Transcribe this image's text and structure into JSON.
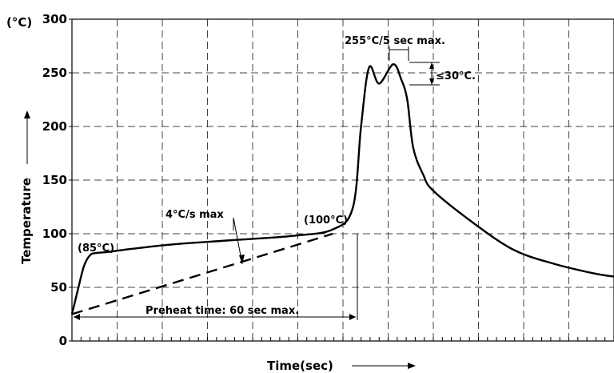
{
  "chart_data": {
    "type": "line",
    "title": "",
    "unit_label": "(°C)",
    "xlabel": "Time(sec)",
    "ylabel": "Temperature",
    "ylim": [
      0,
      300
    ],
    "yticks": [
      0,
      50,
      100,
      150,
      200,
      250,
      300
    ],
    "grid": true,
    "series": [
      {
        "style": "solid",
        "x": [
          0,
          3,
          6,
          9,
          12,
          18,
          30,
          50,
          80,
          110,
          130,
          140,
          144,
          148,
          153,
          160,
          164,
          167,
          170,
          175,
          180,
          200,
          220,
          240,
          260,
          270
        ],
        "values": [
          25,
          48,
          70,
          80,
          82,
          83,
          86,
          90,
          94,
          98,
          104,
          125,
          200,
          255,
          240,
          258,
          244,
          225,
          180,
          155,
          140,
          110,
          85,
          72,
          63,
          60
        ]
      },
      {
        "style": "dashed",
        "x": [
          0,
          130
        ],
        "values": [
          25,
          100
        ]
      }
    ],
    "annotations": {
      "start_temp": "(85°C)",
      "end_temp": "(100°C)",
      "ramp_rate": "4°C/s  max",
      "preheat": "Preheat time: 60 sec max.",
      "peak": "255°C/5  sec  max.",
      "dip": "≤30°C."
    }
  }
}
